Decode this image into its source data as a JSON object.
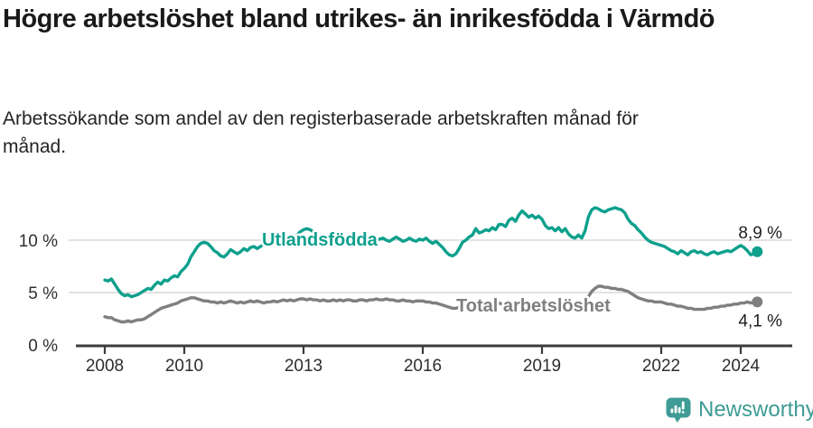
{
  "header": {
    "title": "Högre arbetslöshet bland utrikes- än inrikesfödda i Värmdö",
    "subtitle": "Arbetssökande som andel av den registerbaserade arbetskraften månad för månad."
  },
  "chart_data": {
    "type": "line",
    "title": "Högre arbetslöshet bland utrikes- än inrikesfödda i Värmdö",
    "subtitle": "Arbetssökande som andel av den registerbaserade arbetskraften månad för månad.",
    "unit": "percent",
    "frequency": "monthly",
    "start": "2008-01",
    "end": "2024-06",
    "grid": "horizontal",
    "legend_position": "inline-labels",
    "ylim": [
      0,
      14.3
    ],
    "x_tick_labels": [
      "2008",
      "2010",
      "2013",
      "2016",
      "2019",
      "2022",
      "2024"
    ],
    "y_tick_labels": [
      "0 %",
      "5 %",
      "10 %"
    ],
    "y_tick_values": [
      0,
      5,
      10
    ],
    "series": [
      {
        "name": "Utlandsfödda",
        "color": "#0DA08D",
        "end_label": "8,9 %",
        "end_value": 8.9,
        "values": [
          6.2,
          6.1,
          6.3,
          5.8,
          5.3,
          4.9,
          4.7,
          4.8,
          4.6,
          4.7,
          4.8,
          5.0,
          5.2,
          5.4,
          5.3,
          5.7,
          6.0,
          5.8,
          6.2,
          6.1,
          6.4,
          6.6,
          6.5,
          7.0,
          7.3,
          7.7,
          8.4,
          8.9,
          9.4,
          9.7,
          9.8,
          9.7,
          9.4,
          9.0,
          8.8,
          8.5,
          8.4,
          8.7,
          9.1,
          8.9,
          8.7,
          8.9,
          9.2,
          9.0,
          9.3,
          9.4,
          9.2,
          9.4,
          9.6,
          9.8,
          9.5,
          9.7,
          9.9,
          10.1,
          9.9,
          10.2,
          10.4,
          10.3,
          10.5,
          10.8,
          11.0,
          11.1,
          11.0,
          10.8,
          10.5,
          10.2,
          10.0,
          9.9,
          10.1,
          10.0,
          9.9,
          10.0,
          10.1,
          10.3,
          10.2,
          10.0,
          9.9,
          10.1,
          10.0,
          10.2,
          10.1,
          9.9,
          10.0,
          10.1,
          10.2,
          10.0,
          9.9,
          10.1,
          10.3,
          10.1,
          9.9,
          10.0,
          10.2,
          10.0,
          9.9,
          10.1,
          10.0,
          10.2,
          9.9,
          9.7,
          9.9,
          9.6,
          9.3,
          8.9,
          8.6,
          8.5,
          8.7,
          9.2,
          9.8,
          10.0,
          10.3,
          10.5,
          11.1,
          10.7,
          10.8,
          11.0,
          10.9,
          11.2,
          11.0,
          11.5,
          11.5,
          11.3,
          11.9,
          12.1,
          11.8,
          12.4,
          12.8,
          12.5,
          12.2,
          12.4,
          12.1,
          12.3,
          12.0,
          11.4,
          11.1,
          11.2,
          10.9,
          11.2,
          10.8,
          11.1,
          10.6,
          10.3,
          10.2,
          10.5,
          10.2,
          10.9,
          12.2,
          12.9,
          13.1,
          13.0,
          12.8,
          12.7,
          12.9,
          13.0,
          13.1,
          13.0,
          12.9,
          12.6,
          12.0,
          11.6,
          11.4,
          11.0,
          10.7,
          10.3,
          10.0,
          9.8,
          9.7,
          9.6,
          9.5,
          9.4,
          9.2,
          9.0,
          8.9,
          8.7,
          9.0,
          8.8,
          8.6,
          8.9,
          9.0,
          8.8,
          8.9,
          8.7,
          8.6,
          8.8,
          8.9,
          8.7,
          8.8,
          8.9,
          9.0,
          8.9,
          9.1,
          9.3,
          9.5,
          9.3,
          9.0,
          8.6,
          8.7,
          8.9
        ]
      },
      {
        "name": "Total arbetslöshet",
        "color": "#7F7F7F",
        "end_label": "4,1 %",
        "end_value": 4.1,
        "values": [
          2.7,
          2.6,
          2.6,
          2.4,
          2.3,
          2.2,
          2.2,
          2.3,
          2.2,
          2.3,
          2.4,
          2.4,
          2.5,
          2.7,
          2.9,
          3.1,
          3.3,
          3.5,
          3.6,
          3.7,
          3.8,
          3.9,
          4.0,
          4.2,
          4.3,
          4.4,
          4.5,
          4.5,
          4.4,
          4.3,
          4.2,
          4.2,
          4.1,
          4.1,
          4.0,
          4.1,
          4.0,
          4.1,
          4.2,
          4.1,
          4.0,
          4.1,
          4.0,
          4.1,
          4.2,
          4.1,
          4.2,
          4.1,
          4.0,
          4.1,
          4.1,
          4.2,
          4.1,
          4.2,
          4.3,
          4.2,
          4.3,
          4.2,
          4.3,
          4.4,
          4.4,
          4.3,
          4.4,
          4.3,
          4.3,
          4.2,
          4.3,
          4.2,
          4.2,
          4.3,
          4.2,
          4.3,
          4.2,
          4.3,
          4.3,
          4.2,
          4.2,
          4.3,
          4.3,
          4.2,
          4.3,
          4.3,
          4.4,
          4.3,
          4.3,
          4.4,
          4.3,
          4.3,
          4.2,
          4.2,
          4.3,
          4.2,
          4.2,
          4.1,
          4.2,
          4.2,
          4.2,
          4.1,
          4.1,
          4.0,
          4.0,
          3.9,
          3.8,
          3.7,
          3.6,
          3.5,
          3.5,
          3.6,
          3.7,
          3.8,
          3.8,
          3.9,
          3.9,
          3.8,
          3.9,
          3.9,
          4.0,
          3.9,
          4.0,
          4.0,
          3.9,
          4.0,
          3.9,
          3.9,
          4.0,
          3.9,
          3.8,
          3.9,
          3.9,
          4.0,
          3.9,
          3.9,
          3.9,
          3.8,
          3.9,
          3.9,
          3.8,
          3.9,
          3.9,
          4.0,
          3.9,
          3.9,
          4.0,
          4.0,
          4.1,
          4.2,
          4.6,
          5.1,
          5.4,
          5.6,
          5.6,
          5.5,
          5.5,
          5.4,
          5.4,
          5.3,
          5.3,
          5.2,
          5.1,
          4.9,
          4.7,
          4.5,
          4.4,
          4.3,
          4.2,
          4.2,
          4.1,
          4.1,
          4.1,
          4.0,
          3.9,
          3.9,
          3.8,
          3.7,
          3.7,
          3.6,
          3.5,
          3.5,
          3.4,
          3.4,
          3.4,
          3.4,
          3.5,
          3.5,
          3.6,
          3.6,
          3.7,
          3.7,
          3.8,
          3.8,
          3.9,
          3.9,
          4.0,
          4.0,
          4.1,
          4.0,
          4.1,
          4.1
        ]
      }
    ]
  },
  "footer": {
    "brand": "Newsworthy",
    "brand_color": "#3E9B95"
  }
}
